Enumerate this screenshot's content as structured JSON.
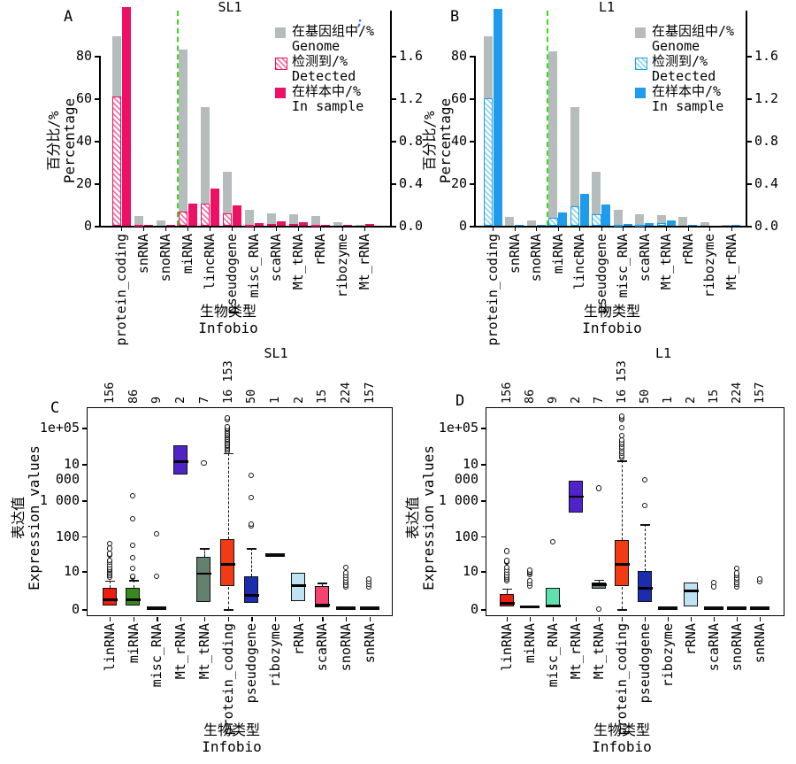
{
  "colors": {
    "genome_bar": "#b4bcbc",
    "sl_accent": "#ec1164",
    "sl_hatch": "#f276a6",
    "l_accent": "#1e9ceb",
    "l_hatch": "#8fd4f0",
    "divider_green": "#3fd61c",
    "axis": "#000000",
    "box_border": "#111111",
    "artifact_blue": "#2a6fd4"
  },
  "chart_data": [
    {
      "id": "A",
      "type": "bar",
      "panel_letter": "A",
      "title": "SL1",
      "ylabel_cn": "百分比/%",
      "ylabel_en": "Percentage",
      "xlabel_cn": "生物类型",
      "xlabel_en": "Infobio",
      "y_left_ticks": [
        0,
        20,
        40,
        60,
        80
      ],
      "y_right_ticks": [
        "0.0",
        "0.4",
        "0.8",
        "1.2",
        "1.6"
      ],
      "ylim_left": [
        0,
        100
      ],
      "ylim_right": [
        0,
        2.0
      ],
      "legend_position": "top-right",
      "legend": [
        {
          "key": "genome",
          "cn": "在基因组中/%",
          "en": "Genome"
        },
        {
          "key": "detected",
          "cn": "检测到/%",
          "en": "Detected"
        },
        {
          "key": "in_sample",
          "cn": "在样本中/%",
          "en": "In sample"
        }
      ],
      "divider_after_category": "snoRNA",
      "categories": [
        "protein_coding",
        "snRNA",
        "snoRNA",
        "miRNA",
        "lincRNA",
        "pseudogene",
        "misc_RNA",
        "scaRNA",
        "Mt_tRNA",
        "rRNA",
        "ribozyme",
        "Mt_rRNA"
      ],
      "series": [
        {
          "name": "genome",
          "values": [
            89,
            4.6,
            2.6,
            83,
            56,
            25.5,
            7.6,
            5.8,
            5.3,
            4.5,
            1.8,
            0.4
          ]
        },
        {
          "name": "detected",
          "values": [
            61,
            0.3,
            0.2,
            6.6,
            10.5,
            6.0,
            0.5,
            0.9,
            0.7,
            0.3,
            0.15,
            0.1
          ]
        },
        {
          "name": "in_sample",
          "values": [
            103,
            0.4,
            0.4,
            10.6,
            17.5,
            9.6,
            1.1,
            2.1,
            1.6,
            0.5,
            0.3,
            1.0
          ]
        }
      ],
      "stray_mark": ";"
    },
    {
      "id": "B",
      "type": "bar",
      "panel_letter": "B",
      "title": "L1",
      "ylabel_cn": "百分比/%",
      "ylabel_en": "Percentage",
      "xlabel_cn": "生物类型",
      "xlabel_en": "Infobio",
      "y_left_ticks": [
        0,
        20,
        40,
        60,
        80
      ],
      "y_right_ticks": [
        "0.0",
        "0.4",
        "0.8",
        "1.2",
        "1.6"
      ],
      "ylim_left": [
        0,
        100
      ],
      "ylim_right": [
        0,
        2.0
      ],
      "legend_position": "top-right",
      "legend": [
        {
          "key": "genome",
          "cn": "在基因组中/%",
          "en": "Genome"
        },
        {
          "key": "detected",
          "cn": "检测到/%",
          "en": "Detected"
        },
        {
          "key": "in_sample",
          "cn": "在样本中/%",
          "en": "In sample"
        }
      ],
      "divider_after_category": "snoRNA",
      "categories": [
        "protein_coding",
        "snRNA",
        "snoRNA",
        "miRNA",
        "lincRNA",
        "pseudogene",
        "misc_RNA",
        "scaRNA",
        "Mt_tRNA",
        "rRNA",
        "ribozyme",
        "Mt_rRNA"
      ],
      "series": [
        {
          "name": "genome",
          "values": [
            89,
            4.3,
            2.3,
            82,
            56,
            25.5,
            7.3,
            5.6,
            4.9,
            4.3,
            1.7,
            0.3
          ]
        },
        {
          "name": "detected",
          "values": [
            60,
            0.2,
            0.2,
            3.6,
            9,
            5.6,
            0.4,
            0.5,
            1.1,
            0.2,
            0.1,
            0.1
          ]
        },
        {
          "name": "in_sample",
          "values": [
            102,
            0.3,
            0.3,
            6.3,
            15,
            9.8,
            1.0,
            1.1,
            2.3,
            0.4,
            0.2,
            0.6
          ]
        }
      ]
    },
    {
      "id": "C",
      "type": "box",
      "panel_letter": "C",
      "title": "SL1",
      "ylabel_cn": "表达值",
      "ylabel_en": "Expression values",
      "xlabel_cn": "生物类型",
      "xlabel_en": "Infobio",
      "scale": "log, 0 at base",
      "y_ticks": [
        {
          "v": 0,
          "label": "0"
        },
        {
          "v": 10,
          "label": "10"
        },
        {
          "v": 100,
          "label": "100"
        },
        {
          "v": 1000,
          "label": "1 000"
        },
        {
          "v": 10000,
          "label": "10 000"
        },
        {
          "v": 100000,
          "label": "1e+05"
        }
      ],
      "counts": [
        "156",
        "86",
        "9",
        "2",
        "7",
        "16 153",
        "50",
        "1",
        "2",
        "15",
        "224",
        "157"
      ],
      "categories": [
        "linRNA",
        "miRNA",
        "misc_RNA",
        "Mt_rRNA",
        "Mt_tRNA",
        "protein_coding",
        "pseudogene",
        "ribozyme",
        "rRNA",
        "scaRNA",
        "snoRNA",
        "snRNA"
      ],
      "boxes": [
        {
          "category": "linRNA",
          "color": "#ed1c0e",
          "q1": 0.2,
          "median": 0.8,
          "q3": 2.8,
          "whisker_high": 5.2,
          "cap_high": true,
          "outliers": [
            6.5,
            7.5,
            8.5,
            9.5,
            10.5,
            11.5,
            13,
            15,
            18,
            21,
            29,
            32,
            45,
            62
          ]
        },
        {
          "category": "miRNA",
          "color": "#348a1d",
          "q1": 0.2,
          "median": 0.8,
          "q3": 2.9,
          "whisker_high": 5.4,
          "cap_high": true,
          "outliers": [
            6.3,
            7,
            12,
            25,
            55,
            300,
            1300
          ]
        },
        {
          "category": "misc_RNA",
          "flat": 0.05,
          "outliers": [
            7,
            115
          ]
        },
        {
          "category": "Mt_rRNA",
          "color": "#5023c8",
          "q1": 4800,
          "median": 11500,
          "q3": 33000,
          "outliers": []
        },
        {
          "category": "Mt_tRNA",
          "color": "#64806f",
          "q1": 0.5,
          "median": 8.5,
          "q3": 27,
          "whisker_high": 46,
          "cap_high": true,
          "outliers": [
            10500
          ]
        },
        {
          "category": "protein_coding",
          "color": "#f23b14",
          "q1": 3,
          "median": 16,
          "q3": 82,
          "whisker_low": 0,
          "cap_low": true,
          "whisker_high": 20000,
          "cap_high": true,
          "outliers": [
            22000,
            24500,
            27000,
            30000,
            33000,
            36500,
            40000,
            44000,
            48000,
            53000,
            58000,
            64000,
            70000,
            78000,
            86000,
            95000,
            105000,
            160000,
            185000
          ]
        },
        {
          "category": "pseudogene",
          "color": "#1c2cae",
          "q1": 0.4,
          "median": 1.4,
          "q3": 7,
          "whisker_high": 46,
          "cap_high": true,
          "outliers": [
            195,
            215,
            1150,
            4800
          ]
        },
        {
          "category": "ribozyme",
          "flat": 30,
          "outliers": []
        },
        {
          "category": "rRNA",
          "color": "#bfe3f2",
          "q1": 0.6,
          "median": 3.5,
          "q3": 9,
          "outliers": []
        },
        {
          "category": "scaRNA",
          "color": "#f4436e",
          "q1": 0.05,
          "median": 0.3,
          "q3": 3.3,
          "whisker_high": 4.3,
          "cap_high": true,
          "outliers": []
        },
        {
          "category": "snoRNA",
          "flat": 0.05,
          "outliers": [
            3,
            3.6,
            4.3,
            5,
            6,
            7.2,
            9,
            13
          ]
        },
        {
          "category": "snRNA",
          "flat": 0.05,
          "outliers": [
            3,
            3.7,
            4.5,
            5.6
          ]
        }
      ]
    },
    {
      "id": "D",
      "type": "box",
      "panel_letter": "D",
      "title": "L1",
      "ylabel_cn": "表达值",
      "ylabel_en": "Expression values",
      "xlabel_cn": "生物类型",
      "xlabel_en": "Infobio",
      "scale": "log, 0 at base",
      "y_ticks": [
        {
          "v": 0,
          "label": "0"
        },
        {
          "v": 10,
          "label": "10"
        },
        {
          "v": 100,
          "label": "100"
        },
        {
          "v": 1000,
          "label": "1 000"
        },
        {
          "v": 10000,
          "label": "10 000"
        },
        {
          "v": 100000,
          "label": "1e+05"
        }
      ],
      "counts": [
        "156",
        "86",
        "9",
        "2",
        "7",
        "16 153",
        "50",
        "1",
        "2",
        "15",
        "224",
        "157"
      ],
      "categories": [
        "linRNA",
        "miRNA",
        "misc_RNA",
        "Mt_rRNA",
        "Mt_tRNA",
        "protein_coding",
        "pseudogene",
        "ribozyme",
        "rRNA",
        "scaRNA",
        "snoRNA",
        "snRNA"
      ],
      "boxes": [
        {
          "category": "linRNA",
          "color": "#ed1c0e",
          "q1": 0.1,
          "median": 0.45,
          "q3": 1.6,
          "whisker_high": 2.7,
          "cap_high": true,
          "outliers": [
            5,
            5.8,
            6.6,
            7.5,
            8.8,
            10.5,
            13,
            18,
            20,
            38
          ]
        },
        {
          "category": "miRNA",
          "flat": 0.15,
          "outliers": [
            3.2,
            4.1,
            5,
            7.8,
            8.8,
            9.5,
            10.5
          ]
        },
        {
          "category": "misc_RNA",
          "color": "#5fe0ac",
          "q1": 0.05,
          "median": 0.2,
          "q3": 2.9,
          "outliers": [
            68
          ]
        },
        {
          "category": "Mt_rRNA",
          "color": "#5023c8",
          "q1": 430,
          "median": 1250,
          "q3": 3400,
          "outliers": []
        },
        {
          "category": "Mt_tRNA",
          "color": "#64806f",
          "q1": 2.4,
          "median": 3.7,
          "q3": 4.5,
          "whisker_high": 5.5,
          "cap_high": true,
          "outliers": [
            0,
            2100
          ]
        },
        {
          "category": "protein_coding",
          "color": "#f23b14",
          "q1": 3,
          "median": 16,
          "q3": 78,
          "whisker_low": 0,
          "cap_low": true,
          "whisker_high": 12500,
          "cap_high": true,
          "outliers": [
            14500,
            16500,
            19000,
            22000,
            25500,
            29500,
            34000,
            39000,
            45000,
            60000,
            100000,
            160000,
            180000,
            205000
          ]
        },
        {
          "category": "pseudogene",
          "color": "#1c2cae",
          "q1": 0.45,
          "median": 2.7,
          "q3": 10.5,
          "whisker_high": 220,
          "cap_high": true,
          "outliers": [
            700,
            3600
          ]
        },
        {
          "category": "ribozyme",
          "flat": 0.05,
          "outliers": []
        },
        {
          "category": "rRNA",
          "color": "#bfe3f2",
          "q1": 0.15,
          "median": 2.1,
          "q3": 4.5,
          "outliers": []
        },
        {
          "category": "scaRNA",
          "flat": 0.05,
          "outliers": [
            3.1,
            4.4
          ]
        },
        {
          "category": "snoRNA",
          "flat": 0.05,
          "outliers": [
            3,
            3.7,
            4.4,
            5.2,
            6.2,
            7.3,
            8.6,
            12
          ]
        },
        {
          "category": "snRNA",
          "flat": 0.05,
          "outliers": [
            4.6,
            5.7
          ]
        }
      ]
    }
  ]
}
